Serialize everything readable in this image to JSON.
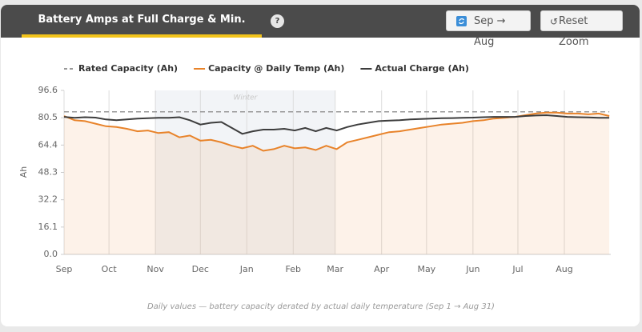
{
  "header": {
    "title": "Battery Amps at Full Charge & Min. Temp",
    "help": "?",
    "buttons": [
      "Sep → Aug",
      "Reset Zoom"
    ]
  },
  "chart_data": {
    "type": "line",
    "y_label": "Ah",
    "footnote": "Daily values — battery capacity derated by actual daily temperature (Sep 1 → Aug 31)",
    "legend": "top",
    "x": [
      0,
      7,
      14,
      21,
      28,
      35,
      42,
      49,
      56,
      63,
      70,
      77,
      84,
      91,
      98,
      105,
      112,
      119,
      126,
      133,
      140,
      147,
      154,
      161,
      168,
      175,
      182,
      189,
      196,
      203,
      210,
      217,
      224,
      231,
      238,
      245,
      252,
      259,
      266,
      273,
      280,
      287,
      294,
      301,
      308,
      315,
      322,
      329,
      336,
      343,
      350,
      357,
      364
    ],
    "xlim": [
      0,
      365
    ],
    "xticks": [
      {
        "value": 0,
        "label": "Sep"
      },
      {
        "value": 30,
        "label": "Oct"
      },
      {
        "value": 61,
        "label": "Nov"
      },
      {
        "value": 91,
        "label": "Dec"
      },
      {
        "value": 122,
        "label": "Jan"
      },
      {
        "value": 153,
        "label": "Feb"
      },
      {
        "value": 181,
        "label": "Mar"
      },
      {
        "value": 212,
        "label": "Apr"
      },
      {
        "value": 242,
        "label": "May"
      },
      {
        "value": 273,
        "label": "Jun"
      },
      {
        "value": 303,
        "label": "Jul"
      },
      {
        "value": 334,
        "label": "Aug"
      }
    ],
    "ylim": [
      0,
      96.6
    ],
    "yticks": [
      {
        "value": 0,
        "label": "0.0"
      },
      16.1,
      32.2,
      48.3,
      64.4,
      80.5,
      96.6
    ],
    "bands": [
      {
        "label": "Winter",
        "x": [
          61,
          181
        ]
      }
    ],
    "series": [
      {
        "name": "Rated Capacity (Ah)",
        "color": "#999999",
        "dash": true,
        "values": [
          84,
          84,
          84,
          84,
          84,
          84,
          84,
          84,
          84,
          84,
          84,
          84,
          84,
          84,
          84,
          84,
          84,
          84,
          84,
          84,
          84,
          84,
          84,
          84,
          84,
          84,
          84,
          84,
          84,
          84,
          84,
          84,
          84,
          84,
          84,
          84,
          84,
          84,
          84,
          84,
          84,
          84,
          84,
          84,
          84,
          84,
          84,
          84,
          84,
          84,
          84,
          84,
          84
        ]
      },
      {
        "name": "Capacity @ Daily Temp (Ah)",
        "color": "#e8832a",
        "area": true,
        "values": [
          81.5,
          79,
          78.5,
          77,
          75.5,
          75,
          74,
          72.5,
          73,
          71.5,
          72,
          69,
          70,
          67,
          67.5,
          66,
          64,
          62.5,
          64,
          61,
          62,
          64,
          62.5,
          63,
          61.5,
          64,
          62,
          66,
          67.5,
          69,
          70.5,
          72,
          72.5,
          73.5,
          74.5,
          75.5,
          76.5,
          77,
          77.5,
          78.5,
          79,
          80,
          80.5,
          81,
          82,
          83,
          83.5,
          83.5,
          83,
          83,
          82.5,
          83,
          81.5
        ]
      },
      {
        "name": "Actual Charge (Ah)",
        "color": "#3d3d3d",
        "values": [
          81,
          80.5,
          80.8,
          80.6,
          79.5,
          79,
          79.5,
          80,
          80.2,
          80.5,
          80.5,
          80.8,
          79,
          76.5,
          77.5,
          78,
          74.5,
          71,
          72.5,
          73.5,
          73.5,
          74,
          73,
          74.5,
          72.5,
          74.5,
          73,
          75,
          76.5,
          77.5,
          78.5,
          78.8,
          79,
          79.5,
          79.8,
          80,
          80.2,
          80.3,
          80.5,
          80.6,
          80.8,
          81,
          81,
          81,
          81.5,
          81.8,
          82,
          81.5,
          81,
          80.8,
          80.7,
          80.5,
          80.5
        ]
      }
    ]
  }
}
